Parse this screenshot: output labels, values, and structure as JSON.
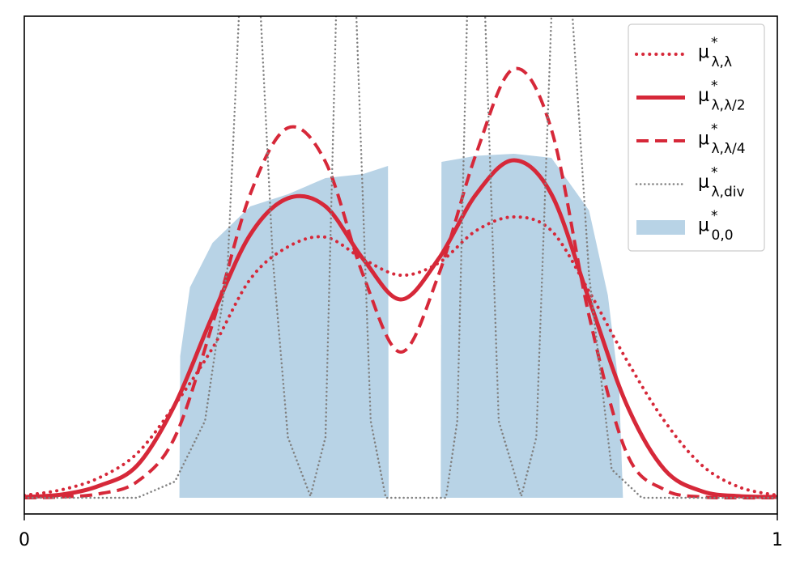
{
  "chart_data": {
    "type": "line",
    "x": [
      0,
      0.05,
      0.1,
      0.15,
      0.2,
      0.25,
      0.3,
      0.35,
      0.4,
      0.45,
      0.5,
      0.55,
      0.6,
      0.65,
      0.7,
      0.75,
      0.8,
      0.85,
      0.9,
      0.95,
      1
    ],
    "xlim": [
      0,
      1
    ],
    "xticks": [
      0,
      1
    ],
    "ylim": [
      -0.04,
      1.19
    ],
    "series": [
      {
        "name": "μ*λ,λ",
        "color": "#d62839",
        "linestyle": "dotted",
        "values": [
          0.006,
          0.02,
          0.05,
          0.11,
          0.23,
          0.37,
          0.54,
          0.62,
          0.644,
          0.59,
          0.55,
          0.58,
          0.66,
          0.694,
          0.66,
          0.51,
          0.34,
          0.19,
          0.08,
          0.026,
          0.006
        ]
      },
      {
        "name": "μ*λ,λ/2",
        "color": "#d62839",
        "linestyle": "solid",
        "values": [
          0.002,
          0.008,
          0.03,
          0.08,
          0.23,
          0.45,
          0.65,
          0.74,
          0.72,
          0.59,
          0.49,
          0.59,
          0.75,
          0.834,
          0.75,
          0.49,
          0.23,
          0.07,
          0.016,
          0.004,
          0.002
        ]
      },
      {
        "name": "μ*λ,λ/4",
        "color": "#d62839",
        "linestyle": "dashed",
        "values": [
          0,
          0.002,
          0.01,
          0.04,
          0.15,
          0.43,
          0.75,
          0.914,
          0.83,
          0.55,
          0.36,
          0.55,
          0.85,
          1.06,
          0.91,
          0.45,
          0.11,
          0.02,
          0.002,
          0,
          0
        ]
      },
      {
        "name": "μ*λ,div",
        "color": "#808080",
        "linestyle": "dotted-thin",
        "x": [
          0,
          0.15,
          0.2,
          0.24,
          0.27,
          0.285,
          0.3,
          0.314,
          0.33,
          0.35,
          0.38,
          0.4,
          0.414,
          0.43,
          0.441,
          0.46,
          0.48,
          0.56,
          0.575,
          0.588,
          0.6,
          0.612,
          0.63,
          0.66,
          0.68,
          0.7,
          0.714,
          0.728,
          0.75,
          0.78,
          0.82,
          1
        ],
        "values": [
          0,
          0,
          0.04,
          0.19,
          0.57,
          1.19,
          1.6,
          1.19,
          0.59,
          0.15,
          0.004,
          0.15,
          1.19,
          1.6,
          1.19,
          0.19,
          0,
          0,
          0.19,
          1.19,
          1.6,
          1.19,
          0.19,
          0.004,
          0.15,
          1.19,
          1.6,
          1.19,
          0.55,
          0.07,
          0,
          0
        ]
      },
      {
        "name": "μ*0,0",
        "color": "#b8d3e6",
        "linestyle": "fill",
        "x": [
          0.206,
          0.207,
          0.22,
          0.25,
          0.3,
          0.35,
          0.4,
          0.45,
          0.483,
          0.484,
          0.52,
          0.553,
          0.554,
          0.6,
          0.65,
          0.7,
          0.75,
          0.775,
          0.79,
          0.795
        ],
        "values": [
          0,
          0.35,
          0.52,
          0.63,
          0.72,
          0.75,
          0.79,
          0.8,
          0.82,
          0,
          null,
          0,
          0.83,
          0.845,
          0.85,
          0.84,
          0.71,
          0.5,
          0.27,
          0
        ]
      }
    ]
  }
}
